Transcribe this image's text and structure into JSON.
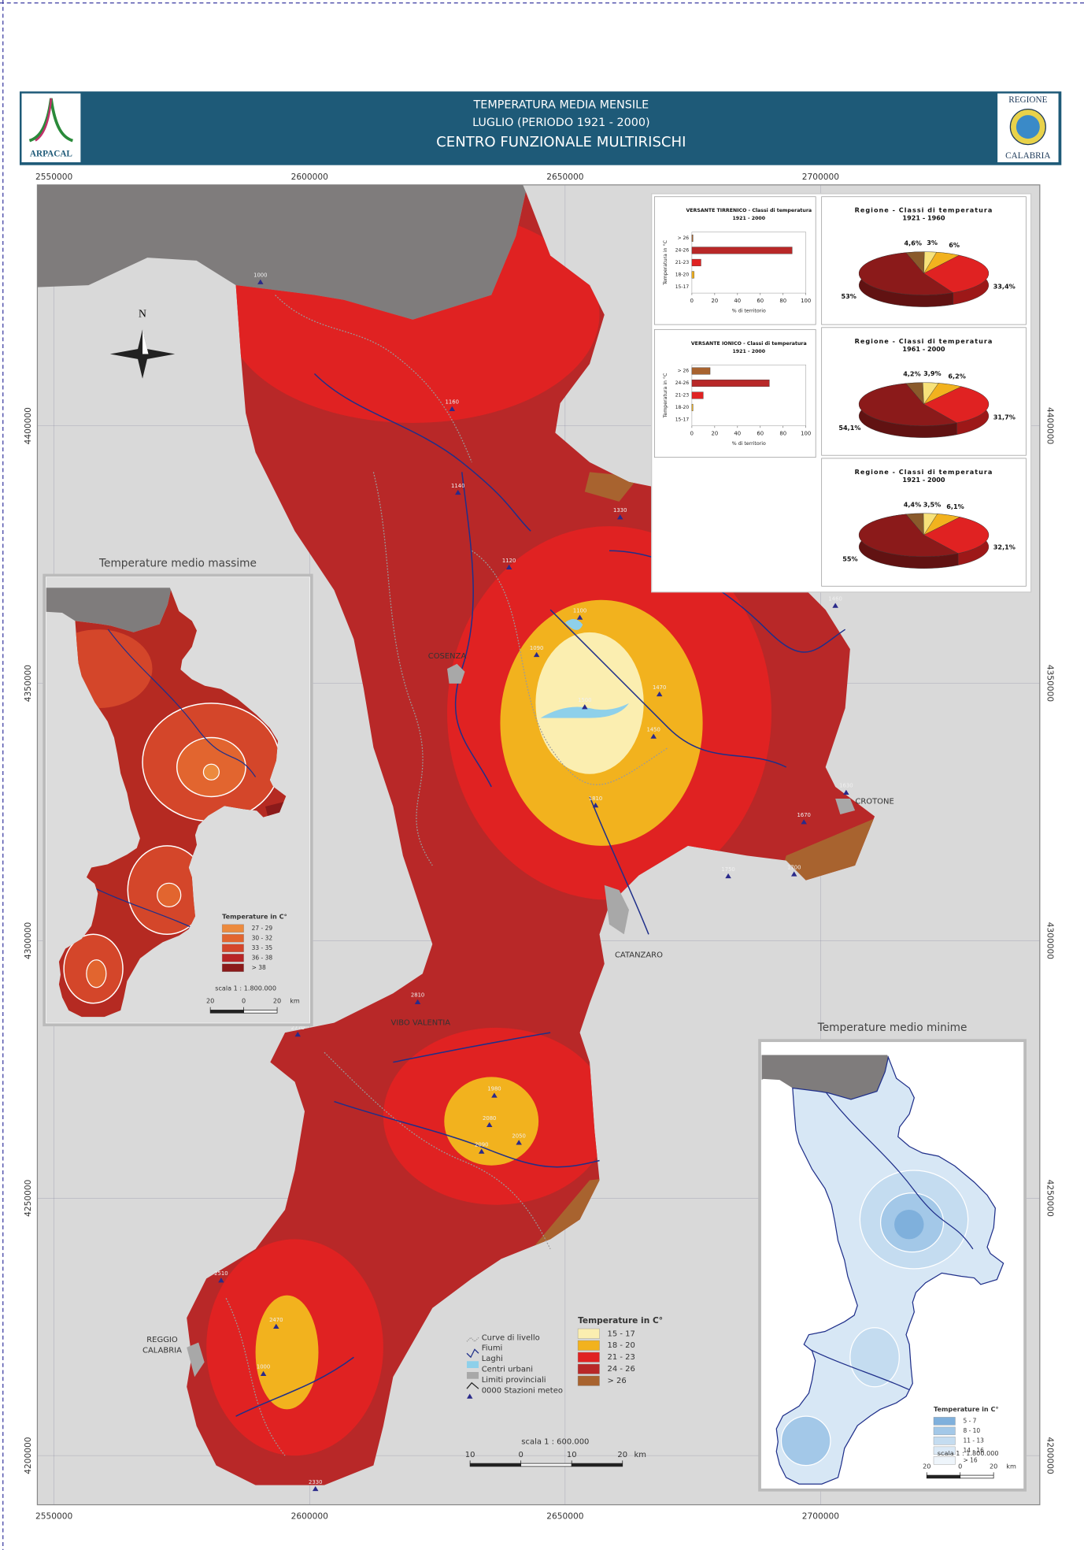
{
  "header": {
    "title": "TEMPERATURA MEDIA MENSILE",
    "subtitle": "LUGLIO (PERIODO 1921 - 2000)",
    "organization": "CENTRO FUNZIONALE MULTIRISCHI",
    "logo_left": "ARPACAL",
    "logo_right_top": "REGIONE",
    "logo_right_bottom": "CALABRIA"
  },
  "map": {
    "easting_ticks": [
      2550000,
      2600000,
      2650000,
      2700000
    ],
    "northing_ticks": [
      4400000,
      4350000,
      4300000,
      4250000,
      4200000
    ],
    "north": "N",
    "places": [
      "COSENZA",
      "CROTONE",
      "CATANZARO",
      "VIBO VALENTIA",
      "REGGIO",
      "CALABRIA"
    ],
    "stations": [
      "1000",
      "1160",
      "1140",
      "1330",
      "1120",
      "1100",
      "1090",
      "1470",
      "1500",
      "1450",
      "1810",
      "1460",
      "1630",
      "1670",
      "1700",
      "1750",
      "2810",
      "2770",
      "1980",
      "2080",
      "2090",
      "2050",
      "2470",
      "1000",
      "2510",
      "2330"
    ],
    "legend": {
      "symbols": [
        "Curve di livello",
        "Fiumi",
        "Laghi",
        "Centri urbani",
        "Limiti provinciali",
        "0000 Stazioni meteo"
      ],
      "title": "Temperature in C°",
      "classes": [
        "15 - 17",
        "18 - 20",
        "21 - 23",
        "24 - 26",
        "> 26"
      ],
      "colors": [
        "#fbeeb0",
        "#f2b21e",
        "#e02222",
        "#b82828",
        "#a8632f"
      ]
    },
    "scale": {
      "label": "scala 1 : 600.000",
      "ticks": [
        {
          "value": -10,
          "label": "10"
        },
        0,
        10,
        20
      ],
      "unit": "km"
    }
  },
  "inset_max": {
    "title": "Temperature medio massime",
    "legend_title": "Temperature in C°",
    "classes": [
      "27 - 29",
      "30 - 32",
      "33 - 35",
      "36 - 38",
      "> 38"
    ],
    "colors": [
      "#ec8a3e",
      "#e2652f",
      "#d4462a",
      "#b82525",
      "#8b1a1a"
    ],
    "scale_label": "scala 1 : 1.800.000",
    "scale_ticks": [
      {
        "value": -20,
        "label": "20"
      },
      0,
      20
    ],
    "unit": "km"
  },
  "inset_min": {
    "title": "Temperature medio minime",
    "legend_title": "Temperature in C°",
    "classes": [
      "5 - 7",
      "8 - 10",
      "11 - 13",
      "14 - 16",
      "> 16"
    ],
    "colors": [
      "#7fb0dc",
      "#a3c8e8",
      "#c4dcf0",
      "#dbe9f6",
      "#eef5fb"
    ],
    "scale_label": "scala 1 : 1.800.000",
    "scale_ticks": [
      {
        "value": -20,
        "label": "20"
      },
      0,
      20
    ],
    "unit": "km"
  },
  "chart_data": [
    {
      "type": "bar",
      "title": "VERSANTE TIRRENICO - Classi di temperatura",
      "subtitle": "1921 - 2000",
      "categories": [
        "> 26",
        "24-26",
        "21-23",
        "18-20",
        "15-17"
      ],
      "values": [
        1,
        88,
        8,
        2,
        0
      ],
      "colors": [
        "#a8632f",
        "#b82828",
        "#e02222",
        "#f2b21e",
        "#fbeeb0"
      ],
      "xlim": [
        0,
        100
      ],
      "xticks": [
        0,
        20,
        40,
        60,
        80,
        100
      ],
      "xlabel": "% di territorio",
      "ylabel": "Temperatura in °C"
    },
    {
      "type": "bar",
      "title": "VERSANTE IONICO - Classi di temperatura",
      "subtitle": "1921 - 2000",
      "categories": [
        "> 26",
        "24-26",
        "21-23",
        "18-20",
        "15-17"
      ],
      "values": [
        16,
        68,
        10,
        1,
        0
      ],
      "colors": [
        "#a8632f",
        "#b82828",
        "#e02222",
        "#f2b21e",
        "#fbeeb0"
      ],
      "xlim": [
        0,
        100
      ],
      "xticks": [
        0,
        20,
        40,
        60,
        80,
        100
      ],
      "xlabel": "% di territorio",
      "ylabel": "Temperatura in °C"
    },
    {
      "type": "pie",
      "title": "Regione - Classi di temperatura",
      "subtitle": "1921 - 1960",
      "values": [
        4.6,
        3,
        6,
        33.4,
        53
      ],
      "value_labels": [
        "4,6%",
        "3%",
        "6%",
        "33,4%",
        "53%"
      ],
      "colors": [
        "#8a5a2b",
        "#f7e27a",
        "#f2b21e",
        "#e02222",
        "#8b1a1a"
      ]
    },
    {
      "type": "pie",
      "title": "Regione - Classi di temperatura",
      "subtitle": "1961 - 2000",
      "values": [
        4.2,
        3.9,
        6.2,
        31.7,
        54.1
      ],
      "value_labels": [
        "4,2%",
        "3,9%",
        "6,2%",
        "31,7%",
        "54,1%"
      ],
      "colors": [
        "#8a5a2b",
        "#f7e27a",
        "#f2b21e",
        "#e02222",
        "#8b1a1a"
      ]
    },
    {
      "type": "pie",
      "title": "Regione - Classi di temperatura",
      "subtitle": "1921 - 2000",
      "values": [
        4.4,
        3.5,
        6.1,
        32.1,
        55
      ],
      "value_labels": [
        "4,4%",
        "3,5%",
        "6,1%",
        "32,1%",
        "55%"
      ],
      "colors": [
        "#8a5a2b",
        "#f7e27a",
        "#f2b21e",
        "#e02222",
        "#8b1a1a"
      ]
    }
  ]
}
